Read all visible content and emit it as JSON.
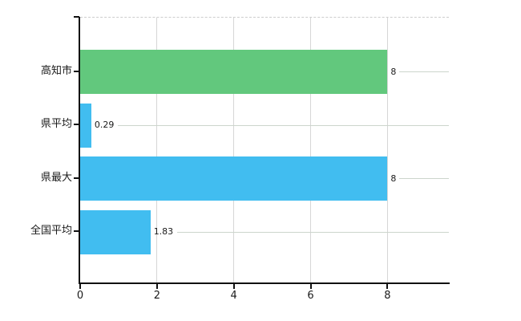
{
  "chart_data": {
    "type": "bar",
    "orientation": "horizontal",
    "title": "",
    "xlabel": "",
    "ylabel": "",
    "categories": [
      "高知市",
      "県平均",
      "県最大",
      "全国平均"
    ],
    "values": [
      8,
      0.29,
      8,
      1.83
    ],
    "value_labels": [
      "8",
      "0.29",
      "8",
      "1.83"
    ],
    "bar_colors": [
      "#62c87d",
      "#41bdf0",
      "#41bdf0",
      "#41bdf0"
    ],
    "xticks": [
      "0",
      "2",
      "4",
      "6",
      "8"
    ],
    "xtick_values": [
      0,
      2,
      4,
      6,
      8
    ],
    "xlim": [
      0,
      9.6
    ],
    "grid": true,
    "legend": "none",
    "colors": {
      "background": "#ffffff",
      "axis": "#111111",
      "vertical_grid": "#d6d6d6",
      "horizontal_grid": "#ccd5cc",
      "top_border_dashed": "#cdcdcd",
      "text": "#1a1a1a"
    }
  }
}
